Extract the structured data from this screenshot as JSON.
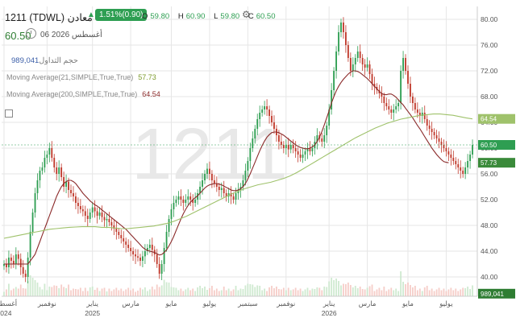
{
  "header": {
    "title": "1211 (TDWL) معادن",
    "change_label": "1.51%(0.90)",
    "ohlc": [
      {
        "key": "O",
        "value": "59.80"
      },
      {
        "key": "H",
        "value": "60.90"
      },
      {
        "key": "L",
        "value": "59.80"
      },
      {
        "key": "C",
        "value": "60.50"
      }
    ],
    "last_price": "60.50",
    "date": "06 أغسطس 2026",
    "icons": {
      "change": "triangle-up-icon",
      "settings": "gear-icon",
      "time": "clock-icon",
      "collapse": "square-icon"
    }
  },
  "legend": {
    "volume_label": "حجم التداول",
    "volume_value": "989,041",
    "ma_short_label": "Moving Average(21,SIMPLE,True,True)",
    "ma_short_value": "57.73",
    "ma_long_label": "Moving Average(200,SIMPLE,True,True)",
    "ma_long_value": "64.54"
  },
  "colors": {
    "up": "#2e9e52",
    "down": "#c0392b",
    "ma_short": "#8b2a2a",
    "ma_long": "#9fc26b",
    "grid": "#e6e6e6",
    "watermark": "#e8e8e8"
  },
  "watermark": "1211",
  "chart_data": {
    "type": "candlestick",
    "y_ticks": [
      "80.00",
      "76.00",
      "72.00",
      "68.00",
      "64.00",
      "60.00",
      "56.00",
      "52.00",
      "48.00",
      "44.00",
      "40.00"
    ],
    "ylim": [
      37,
      82
    ],
    "x_labels": [
      {
        "i": 0,
        "label": "أغسطس",
        "year": "2024"
      },
      {
        "i": 18,
        "label": "نوفمبر",
        "year": ""
      },
      {
        "i": 37,
        "label": "يناير",
        "year": "2025"
      },
      {
        "i": 53,
        "label": "مارس",
        "year": ""
      },
      {
        "i": 70,
        "label": "مايو",
        "year": ""
      },
      {
        "i": 86,
        "label": "يوليو",
        "year": ""
      },
      {
        "i": 102,
        "label": "سبتمبر",
        "year": ""
      },
      {
        "i": 118,
        "label": "نوفمبر",
        "year": ""
      },
      {
        "i": 136,
        "label": "يناير",
        "year": "2026"
      },
      {
        "i": 152,
        "label": "مارس",
        "year": ""
      },
      {
        "i": 169,
        "label": "مايو",
        "year": ""
      },
      {
        "i": 185,
        "label": "يوليو",
        "year": ""
      }
    ],
    "close": [
      42,
      41.5,
      43,
      42.5,
      42,
      43.5,
      42.8,
      41.5,
      40.5,
      40,
      43,
      47,
      50,
      53,
      55,
      56.5,
      57,
      58.5,
      59,
      60,
      58.5,
      57,
      56,
      57,
      55.5,
      54,
      54.8,
      53.5,
      53,
      52.5,
      51.5,
      51,
      50.5,
      50.2,
      49.5,
      49,
      50,
      50.8,
      50.2,
      49.5,
      50,
      49.3,
      48.8,
      49,
      48.5,
      48,
      47.5,
      47,
      46.5,
      46,
      45.5,
      45,
      44.5,
      44,
      43.5,
      43.2,
      43,
      42.5,
      43.2,
      44,
      44.5,
      45,
      44.2,
      43.5,
      42,
      40.5,
      42,
      44.5,
      47,
      49,
      50.5,
      51.5,
      52,
      52.5,
      52,
      51.5,
      52,
      52.5,
      52,
      51.5,
      52,
      53,
      54,
      55,
      56,
      56.8,
      56,
      55,
      54.5,
      54,
      53.5,
      53.8,
      53,
      52.5,
      53,
      52.5,
      52,
      53,
      53.5,
      54,
      55,
      56.5,
      58,
      60,
      61.5,
      63,
      64.5,
      65.5,
      66,
      66.5,
      66,
      65,
      64,
      63,
      62,
      61,
      60.5,
      60,
      60.5,
      59.8,
      60.5,
      60,
      59.5,
      59,
      58.5,
      59,
      59.5,
      60,
      59.5,
      60,
      61,
      62,
      61.5,
      61,
      62,
      63.5,
      66,
      69,
      72,
      75,
      78,
      79.5,
      78,
      76,
      74,
      72,
      73,
      74,
      75,
      74,
      73,
      72.5,
      73,
      71.5,
      70,
      69.5,
      69,
      68.5,
      68,
      67,
      66.5,
      66,
      65.5,
      66,
      66.5,
      67,
      72,
      74,
      72,
      70,
      68,
      67,
      66,
      65.5,
      65,
      65.5,
      64.5,
      63.5,
      63,
      62.5,
      62,
      61.5,
      61,
      60.5,
      60,
      59.5,
      59,
      58.5,
      58,
      57.5,
      57,
      56.5,
      56,
      57,
      58,
      59,
      60.5
    ],
    "ma21": [
      42,
      42,
      42,
      42,
      42,
      42,
      42,
      42,
      42,
      42,
      42,
      42.5,
      43,
      43.5,
      44.5,
      45.5,
      46.5,
      47.5,
      48.5,
      49.5,
      50.5,
      51.5,
      52.5,
      53.3,
      54,
      54.5,
      54.8,
      55,
      55,
      54.8,
      54.5,
      54,
      53.5,
      53,
      52.6,
      52.2,
      51.8,
      51.5,
      51.2,
      51,
      50.7,
      50.4,
      50.1,
      49.8,
      49.5,
      49.2,
      48.9,
      48.6,
      48.3,
      48,
      47.7,
      47.4,
      47,
      46.6,
      46.2,
      45.8,
      45.4,
      45,
      44.6,
      44.3,
      44.1,
      44,
      43.9,
      43.8,
      43.6,
      43.4,
      43.5,
      43.8,
      44.2,
      44.8,
      45.5,
      46.3,
      47.2,
      48.1,
      49,
      49.8,
      50.5,
      51.1,
      51.6,
      52,
      52.3,
      52.6,
      53,
      53.4,
      53.8,
      54.1,
      54.3,
      54.4,
      54.5,
      54.5,
      54.4,
      54.3,
      54.1,
      53.9,
      53.7,
      53.5,
      53.4,
      53.4,
      53.5,
      53.7,
      54,
      54.5,
      55.2,
      56,
      56.9,
      57.8,
      58.7,
      59.6,
      60.4,
      61.1,
      61.7,
      62.1,
      62.4,
      62.5,
      62.5,
      62.4,
      62.2,
      62,
      61.7,
      61.4,
      61.1,
      60.8,
      60.5,
      60.3,
      60.1,
      60,
      59.9,
      59.9,
      60,
      60.2,
      60.5,
      61,
      61.7,
      62.6,
      63.6,
      64.7,
      65.8,
      67,
      68,
      68.9,
      69.6,
      70.2,
      70.7,
      71.1,
      71.5,
      71.8,
      72,
      72,
      71.9,
      71.7,
      71.4,
      71.1,
      70.8,
      70.4,
      70,
      69.6,
      69.2,
      68.8,
      68.5,
      68.3,
      68.3,
      68.4,
      68.4,
      68.2,
      67.9,
      67.5,
      67.1,
      66.7,
      66.2,
      65.7,
      65.2,
      64.7,
      64.1,
      63.5,
      63,
      62.4,
      61.8,
      61.2,
      60.6,
      60,
      59.5,
      59,
      58.6,
      58.2,
      57.9,
      57.8,
      57.73
    ],
    "ma200": [
      46,
      46.2,
      46.4,
      46.6,
      46.8,
      47,
      47.2,
      47.4,
      47.5,
      47.6,
      47.7,
      47.75,
      47.8,
      47.8,
      47.8,
      47.7,
      47.7,
      47.6,
      47.5,
      47.5,
      47.6,
      47.7,
      47.8,
      47.9,
      48.1,
      48.3,
      48.6,
      49,
      49.4,
      49.9,
      50.4,
      50.9,
      51.4,
      51.9,
      52.4,
      52.9,
      53.3,
      53.7,
      54,
      54.3,
      54.5,
      54.7,
      55,
      55.3,
      55.7,
      56.2,
      56.8,
      57.4,
      58,
      58.6,
      59.2,
      59.8,
      60.4,
      61,
      61.6,
      62.1,
      62.6,
      63.1,
      63.5,
      63.9,
      64.2,
      64.5,
      64.7,
      64.9,
      65.1,
      65.2,
      65.3,
      65.3,
      65.2,
      65.1,
      64.9,
      64.7,
      64.54
    ]
  }
}
